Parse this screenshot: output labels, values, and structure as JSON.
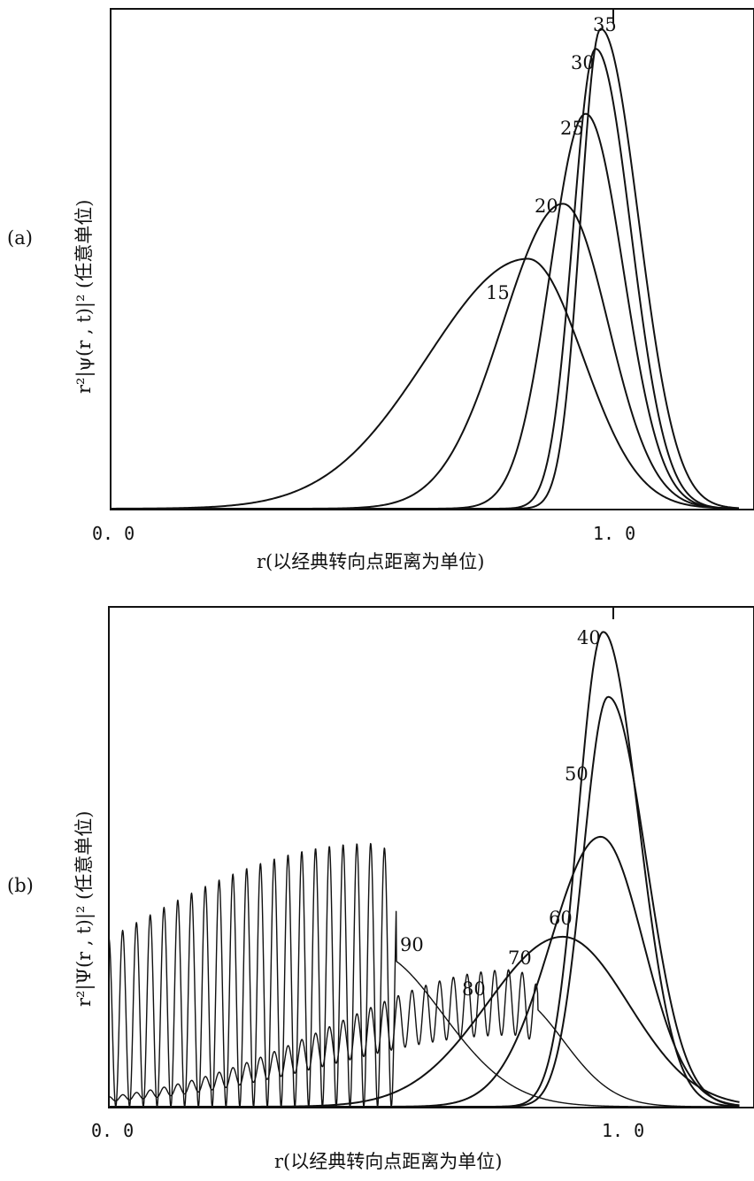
{
  "chart_data": [
    {
      "type": "line",
      "panel_label": "(a)",
      "xlabel": "r(以经典转向点距离为单位)",
      "ylabel": "r²|ψ(r , t)|² (任意单位)",
      "xlim": [
        0.0,
        1.25
      ],
      "ylim": [
        0,
        1.0
      ],
      "x_ticks": [
        {
          "value": 0.0,
          "label": "0. 0"
        },
        {
          "value": 1.0,
          "label": "1. 0"
        }
      ],
      "series": [
        {
          "name": "15",
          "peak_x": 0.83,
          "peak_y": 0.5,
          "left_width": 0.2,
          "right_width": 0.11,
          "oscillation": 0
        },
        {
          "name": "20",
          "peak_x": 0.9,
          "peak_y": 0.61,
          "left_width": 0.12,
          "right_width": 0.09,
          "oscillation": 0
        },
        {
          "name": "25",
          "peak_x": 0.945,
          "peak_y": 0.79,
          "left_width": 0.07,
          "right_width": 0.075,
          "oscillation": 0
        },
        {
          "name": "30",
          "peak_x": 0.965,
          "peak_y": 0.92,
          "left_width": 0.045,
          "right_width": 0.07,
          "oscillation": 0
        },
        {
          "name": "35",
          "peak_x": 0.975,
          "peak_y": 0.96,
          "left_width": 0.04,
          "right_width": 0.075,
          "oscillation": 0
        }
      ]
    },
    {
      "type": "line",
      "panel_label": "(b)",
      "xlabel": "r(以经典转向点距离为单位)",
      "ylabel": "r²|Ψ(r , t)|² (任意单位)",
      "xlim": [
        0.0,
        1.25
      ],
      "ylim": [
        0,
        1.0
      ],
      "x_ticks": [
        {
          "value": 0.0,
          "label": "0. 0"
        },
        {
          "value": 1.0,
          "label": "1. 0"
        }
      ],
      "series": [
        {
          "name": "40",
          "peak_x": 0.98,
          "peak_y": 0.95,
          "left_width": 0.05,
          "right_width": 0.07,
          "oscillation": 0
        },
        {
          "name": "50",
          "peak_x": 0.99,
          "peak_y": 0.82,
          "left_width": 0.05,
          "right_width": 0.075,
          "oscillation": 0
        },
        {
          "name": "60",
          "peak_x": 0.975,
          "peak_y": 0.54,
          "left_width": 0.1,
          "right_width": 0.085,
          "oscillation": 0
        },
        {
          "name": "70",
          "peak_x": 0.9,
          "peak_y": 0.34,
          "left_width": 0.15,
          "right_width": 0.13,
          "oscillation": 0
        },
        {
          "name": "80",
          "peak_x": 0.8,
          "peak_y": 0.22,
          "left_width": 0.35,
          "right_width": 0.1,
          "oscillation": 0.35
        },
        {
          "name": "90",
          "peak_x": 0.52,
          "peak_y": 0.31,
          "left_width": 0.55,
          "right_width": 0.14,
          "oscillation": 1.0
        }
      ]
    }
  ]
}
